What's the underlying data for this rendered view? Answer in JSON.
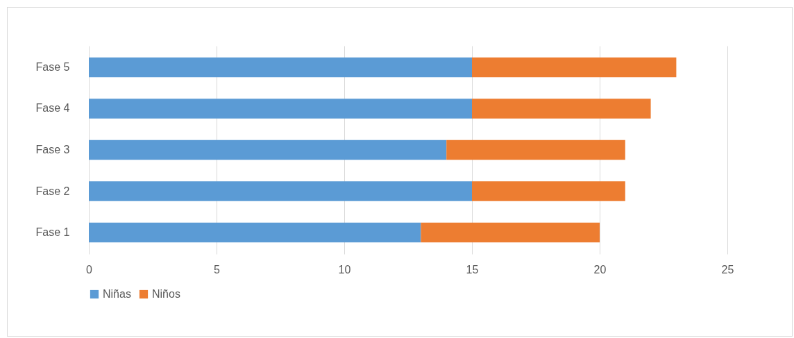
{
  "chart_data": {
    "type": "bar",
    "orientation": "horizontal",
    "stacked": true,
    "categories": [
      "Fase 5",
      "Fase 4",
      "Fase 3",
      "Fase 2",
      "Fase 1"
    ],
    "series": [
      {
        "name": "Niñas",
        "color": "#5b9bd5",
        "values": [
          15,
          15,
          14,
          15,
          13
        ]
      },
      {
        "name": "Niños",
        "color": "#ed7d31",
        "values": [
          8,
          7,
          7,
          6,
          7
        ]
      }
    ],
    "xlim": [
      0,
      25
    ],
    "xticks": [
      0,
      5,
      10,
      15,
      20,
      25
    ],
    "grid": "x",
    "legend": "bottom"
  }
}
